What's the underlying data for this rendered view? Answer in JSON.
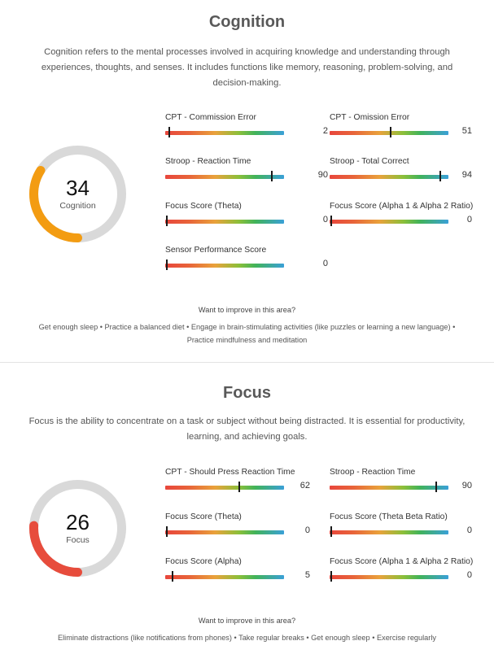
{
  "cognition": {
    "title": "Cognition",
    "description": "Cognition refers to the mental processes involved in acquiring knowledge and understanding through experiences, thoughts, and senses. It includes functions like memory, reasoning, problem-solving, and decision-making.",
    "score": "34",
    "score_label": "Cognition",
    "score_fraction": 0.34,
    "score_color": "#f39c12",
    "metrics": [
      {
        "label": "CPT - Commission Error",
        "value": "2",
        "marker": 0.02
      },
      {
        "label": "CPT - Omission Error",
        "value": "51",
        "marker": 0.51
      },
      {
        "label": "Stroop - Reaction Time",
        "value": "90",
        "marker": 0.9
      },
      {
        "label": "Stroop - Total Correct",
        "value": "94",
        "marker": 0.94
      },
      {
        "label": "Focus Score (Theta)",
        "value": "0",
        "marker": 0.0
      },
      {
        "label": "Focus Score (Alpha 1 & Alpha 2 Ratio)",
        "value": "0",
        "marker": 0.0
      },
      {
        "label": "Sensor Performance Score",
        "value": "0",
        "marker": 0.0
      }
    ],
    "improve_title": "Want to improve in this area?",
    "improve_text": "Get enough sleep • Practice a balanced diet • Engage in brain-stimulating activities (like puzzles or learning a new language) • Practice mindfulness and meditation"
  },
  "focus": {
    "title": "Focus",
    "description": "Focus is the ability to concentrate on a task or subject without being distracted. It is essential for productivity, learning, and achieving goals.",
    "score": "26",
    "score_label": "Focus",
    "score_fraction": 0.26,
    "score_color": "#e74c3c",
    "metrics": [
      {
        "label": "CPT - Should Press Reaction Time",
        "value": "62",
        "marker": 0.62
      },
      {
        "label": "Stroop - Reaction Time",
        "value": "90",
        "marker": 0.9
      },
      {
        "label": "Focus Score (Theta)",
        "value": "0",
        "marker": 0.0
      },
      {
        "label": "Focus Score (Theta Beta Ratio)",
        "value": "0",
        "marker": 0.0
      },
      {
        "label": "Focus Score (Alpha)",
        "value": "5",
        "marker": 0.05
      },
      {
        "label": "Focus Score (Alpha 1 & Alpha 2 Ratio)",
        "value": "0",
        "marker": 0.0
      }
    ],
    "improve_title": "Want to improve in this area?",
    "improve_text": "Eliminate distractions (like notifications from phones) • Take regular breaks • Get enough sleep • Exercise regularly"
  },
  "colors": {
    "gauge_track": "#d9d9d9"
  }
}
